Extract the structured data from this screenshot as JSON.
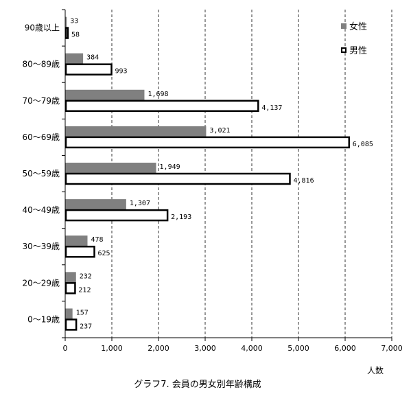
{
  "chart_data": {
    "type": "bar",
    "orientation": "horizontal",
    "title": "",
    "caption": "グラフ7. 会員の男女別年齢構成",
    "xlabel": "人数",
    "ylabel": "",
    "xlim": [
      0,
      7000
    ],
    "xticks": [
      0,
      1000,
      2000,
      3000,
      4000,
      5000,
      6000,
      7000
    ],
    "xtick_labels": [
      "0",
      "1,000",
      "2,000",
      "3,000",
      "4,000",
      "5,000",
      "6,000",
      "7,000"
    ],
    "grid": "vertical dashed",
    "legend_position": "top-right",
    "categories": [
      "90歳以上",
      "80～89歳",
      "70～79歳",
      "60～69歳",
      "50～59歳",
      "40～49歳",
      "30～39歳",
      "20～29歳",
      "0～19歳"
    ],
    "series": [
      {
        "name": "女性",
        "color": "#808080",
        "values": [
          33,
          384,
          1698,
          3021,
          1949,
          1307,
          478,
          232,
          157
        ],
        "labels": [
          "33",
          "384",
          "1,698",
          "3,021",
          "1,949",
          "1,307",
          "478",
          "232",
          "157"
        ]
      },
      {
        "name": "男性",
        "color": "#ffffff",
        "values": [
          58,
          993,
          4137,
          6085,
          4816,
          2193,
          625,
          212,
          237
        ],
        "labels": [
          "58",
          "993",
          "4,137",
          "6,085",
          "4,816",
          "2,193",
          "625",
          "212",
          "237"
        ]
      }
    ]
  }
}
